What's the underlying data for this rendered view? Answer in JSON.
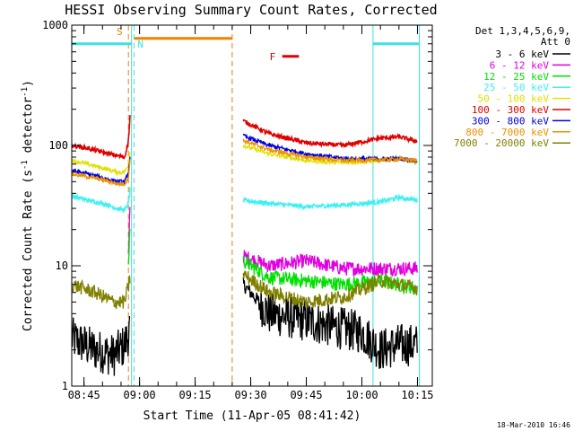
{
  "chart_data": {
    "type": "line",
    "title": "HESSI Observing Summary Count Rates, Corrected",
    "xlabel": "Start Time (11-Apr-05 08:41:42)",
    "ylabel_main": "Corrected Count Rate (s",
    "ylabel_sup1": "-1",
    "ylabel_mid": " detector",
    "ylabel_sup2": "-1",
    "ylabel_end": ")",
    "yscale": "log",
    "ylim": [
      1,
      1000
    ],
    "xlim": [
      "08:41:42",
      "10:19:00"
    ],
    "x_ticks": [
      "08:45",
      "09:00",
      "09:15",
      "09:30",
      "09:45",
      "10:00",
      "10:15"
    ],
    "y_ticks": [
      "1",
      "10",
      "100",
      "1000"
    ],
    "grid": false,
    "legend_position": "right",
    "legend_header": [
      "Det 1,3,4,5,6,9,",
      "Att 0"
    ],
    "footer_date": "18-Mar-2010 16:46",
    "markers": [
      {
        "label": "S",
        "color": "#f08000",
        "start": "08:57:40",
        "end": "09:25:00",
        "y": 700
      },
      {
        "label": "N",
        "color": "#40e0e0",
        "start": "08:58:30",
        "end": "08:58:30",
        "y": 700
      },
      {
        "label": "F",
        "color": "#e00000",
        "start": "09:38:30",
        "end": "09:43:00",
        "y": 550
      }
    ],
    "night_periods": [
      {
        "start": "08:41:42",
        "end": "08:57:50"
      },
      {
        "start": "10:03:00",
        "end": "10:15:30"
      }
    ],
    "dashed_lines": [
      {
        "time": "08:57:00",
        "color": "#f08000"
      },
      {
        "time": "08:58:30",
        "color": "#40e0e0"
      },
      {
        "time": "09:25:00",
        "color": "#f08000"
      },
      {
        "time": "10:15:30",
        "color": "#40e0e0"
      }
    ],
    "series": [
      {
        "name": "3 - 6 keV",
        "color": "#000000",
        "seg1": [
          [
            "08:41:42",
            2.5
          ],
          [
            "08:48",
            2.0
          ],
          [
            "08:53",
            1.8
          ],
          [
            "08:56",
            2.2
          ],
          [
            "08:57:30",
            3
          ]
        ],
        "seg2": [
          [
            "09:28",
            7
          ],
          [
            "09:35",
            4
          ],
          [
            "09:45",
            3.5
          ],
          [
            "09:55",
            3
          ],
          [
            "10:00",
            2.8
          ],
          [
            "10:05",
            2.0
          ],
          [
            "10:10",
            2.2
          ],
          [
            "10:15",
            2.2
          ]
        ]
      },
      {
        "name": "6 - 12 keV",
        "color": "#e000e0",
        "seg1": [
          [
            "08:57:00",
            12
          ],
          [
            "08:57:30",
            40
          ]
        ],
        "seg2": [
          [
            "09:28",
            12
          ],
          [
            "09:35",
            10
          ],
          [
            "09:45",
            11
          ],
          [
            "09:55",
            9.5
          ],
          [
            "10:05",
            9.5
          ],
          [
            "10:15",
            9.5
          ]
        ]
      },
      {
        "name": "12 - 25 keV",
        "color": "#00e000",
        "seg1": [
          [
            "08:57:00",
            10
          ],
          [
            "08:57:30",
            25
          ]
        ],
        "seg2": [
          [
            "09:28",
            11
          ],
          [
            "09:35",
            8
          ],
          [
            "09:45",
            7.5
          ],
          [
            "09:55",
            7
          ],
          [
            "10:05",
            7.5
          ],
          [
            "10:15",
            6.5
          ]
        ]
      },
      {
        "name": "25 - 50 keV",
        "color": "#40f0f0",
        "seg1": [
          [
            "08:41:42",
            38
          ],
          [
            "08:46",
            35
          ],
          [
            "08:50",
            33
          ],
          [
            "08:54",
            30
          ],
          [
            "08:56",
            29
          ],
          [
            "08:57:00",
            33
          ],
          [
            "08:57:30",
            45
          ]
        ],
        "seg2": [
          [
            "09:28",
            35
          ],
          [
            "09:35",
            33
          ],
          [
            "09:45",
            31
          ],
          [
            "09:55",
            32
          ],
          [
            "10:05",
            34
          ],
          [
            "10:10",
            37
          ],
          [
            "10:15",
            35
          ]
        ]
      },
      {
        "name": "50 - 100 keV",
        "color": "#e0e000",
        "seg1": [
          [
            "08:41:42",
            75
          ],
          [
            "08:46",
            70
          ],
          [
            "08:50",
            65
          ],
          [
            "08:54",
            60
          ],
          [
            "08:56",
            60
          ],
          [
            "08:57:00",
            70
          ],
          [
            "08:57:30",
            95
          ]
        ],
        "seg2": [
          [
            "09:28",
            100
          ],
          [
            "09:35",
            85
          ],
          [
            "09:45",
            75
          ],
          [
            "09:55",
            72
          ],
          [
            "10:05",
            75
          ],
          [
            "10:10",
            78
          ],
          [
            "10:15",
            72
          ]
        ]
      },
      {
        "name": "100 - 300 keV",
        "color": "#e00000",
        "seg1": [
          [
            "08:41:42",
            100
          ],
          [
            "08:46",
            95
          ],
          [
            "08:50",
            88
          ],
          [
            "08:54",
            82
          ],
          [
            "08:56",
            80
          ],
          [
            "08:57:00",
            110
          ],
          [
            "08:57:30",
            190
          ]
        ],
        "seg2": [
          [
            "09:28",
            160
          ],
          [
            "09:35",
            125
          ],
          [
            "09:45",
            105
          ],
          [
            "09:55",
            100
          ],
          [
            "10:05",
            115
          ],
          [
            "10:10",
            118
          ],
          [
            "10:15",
            108
          ]
        ]
      },
      {
        "name": "300 - 800 keV",
        "color": "#0000e0",
        "seg1": [
          [
            "08:41:42",
            62
          ],
          [
            "08:46",
            58
          ],
          [
            "08:50",
            54
          ],
          [
            "08:54",
            50
          ],
          [
            "08:56",
            50
          ],
          [
            "08:57:00",
            60
          ],
          [
            "08:57:30",
            85
          ]
        ],
        "seg2": [
          [
            "09:28",
            120
          ],
          [
            "09:35",
            100
          ],
          [
            "09:45",
            85
          ],
          [
            "09:55",
            78
          ],
          [
            "10:05",
            77
          ],
          [
            "10:10",
            78
          ],
          [
            "10:15",
            75
          ]
        ]
      },
      {
        "name": "800 - 7000 keV",
        "color": "#f09000",
        "seg1": [
          [
            "08:41:42",
            58
          ],
          [
            "08:46",
            55
          ],
          [
            "08:50",
            52
          ],
          [
            "08:54",
            48
          ],
          [
            "08:56",
            48
          ],
          [
            "08:57:00",
            55
          ],
          [
            "08:57:30",
            80
          ]
        ],
        "seg2": [
          [
            "09:28",
            110
          ],
          [
            "09:35",
            92
          ],
          [
            "09:45",
            80
          ],
          [
            "09:55",
            75
          ],
          [
            "10:05",
            76
          ],
          [
            "10:10",
            77
          ],
          [
            "10:15",
            75
          ]
        ]
      },
      {
        "name": "7000 - 20000 keV",
        "color": "#808000",
        "seg1": [
          [
            "08:41:42",
            7
          ],
          [
            "08:48",
            6
          ],
          [
            "08:53",
            5
          ],
          [
            "08:56",
            5
          ],
          [
            "08:57:30",
            8
          ]
        ],
        "seg2": [
          [
            "09:28",
            8.5
          ],
          [
            "09:35",
            6
          ],
          [
            "09:45",
            5
          ],
          [
            "09:55",
            5.5
          ],
          [
            "10:05",
            7.5
          ],
          [
            "10:10",
            7
          ],
          [
            "10:15",
            6.5
          ]
        ]
      }
    ]
  }
}
